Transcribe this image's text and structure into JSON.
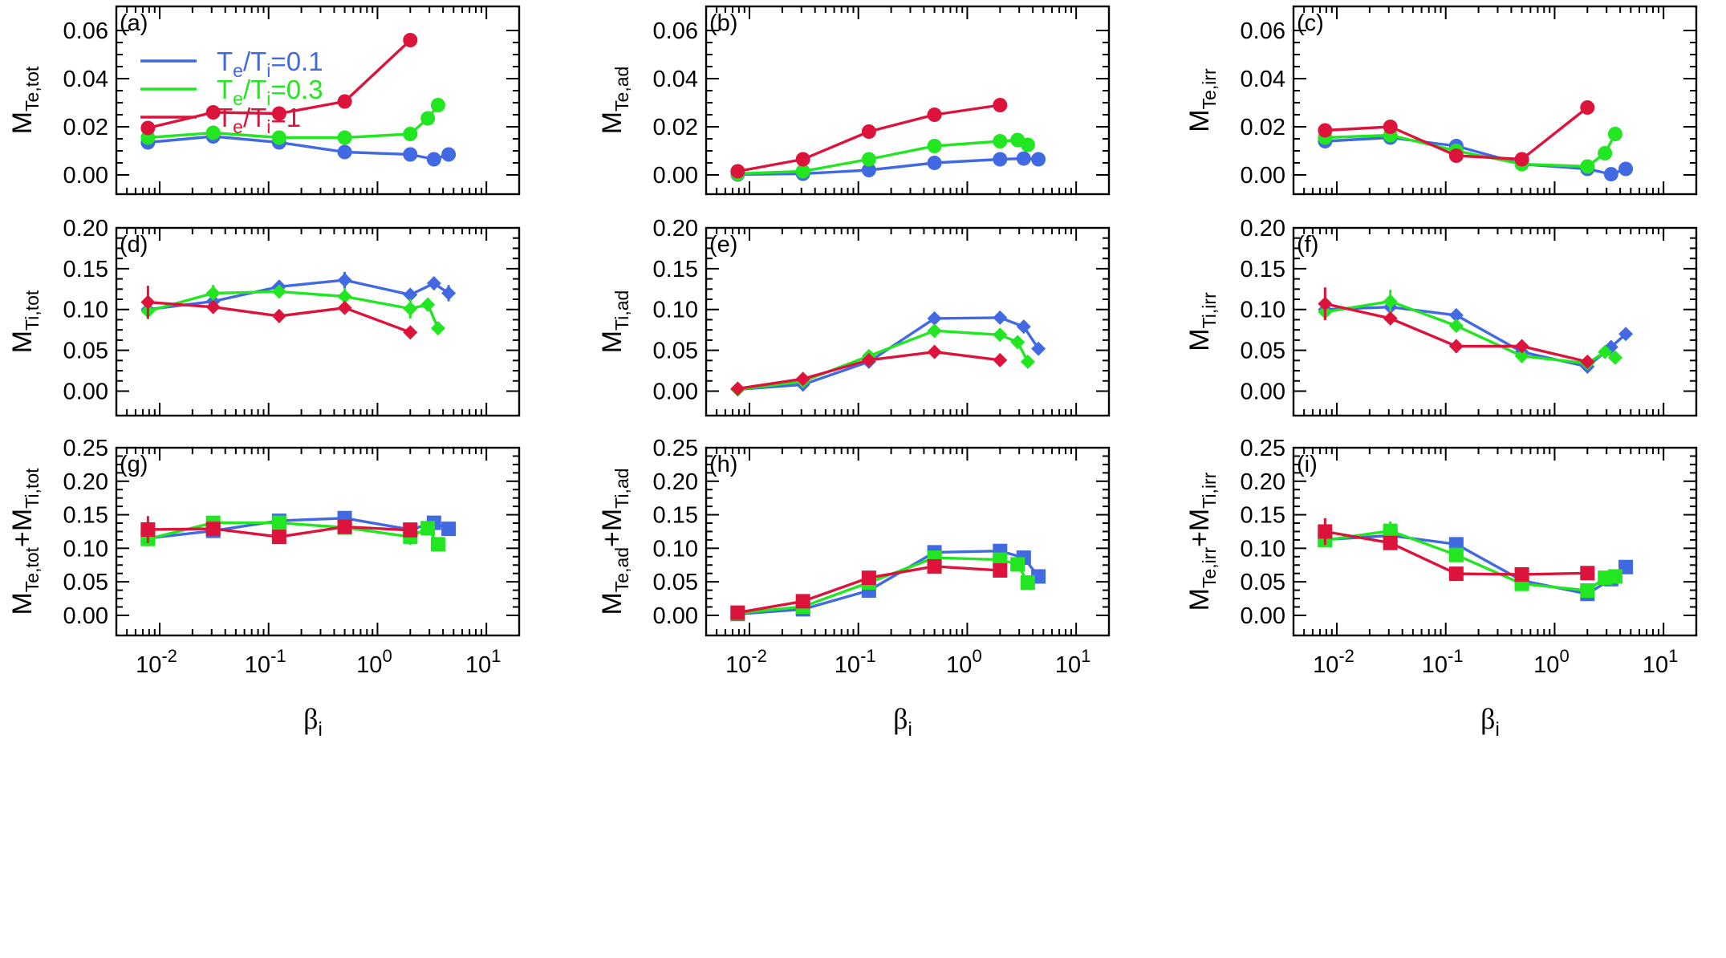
{
  "chart_data": {
    "type": "line",
    "xlabel": {
      "main": "β",
      "sub": "i"
    },
    "xscale": "log",
    "xlim": [
      0.004,
      20
    ],
    "xticks": [
      {
        "value": 0.01,
        "base": "10",
        "exp": "-2"
      },
      {
        "value": 0.1,
        "base": "10",
        "exp": "-1"
      },
      {
        "value": 1,
        "base": "10",
        "exp": "0"
      },
      {
        "value": 10,
        "base": "10",
        "exp": "1"
      }
    ],
    "legend": {
      "placement": "top-left of panel (a)",
      "entries": [
        {
          "series": "te01",
          "label": "T",
          "sub1": "e",
          "mid": "/T",
          "sub2": "i",
          "tail": "=0.1"
        },
        {
          "series": "te03",
          "label": "T",
          "sub1": "e",
          "mid": "/T",
          "sub2": "i",
          "tail": "=0.3"
        },
        {
          "series": "te1",
          "label": "T",
          "sub1": "e",
          "mid": "/T",
          "sub2": "i",
          "tail": "=1"
        }
      ]
    },
    "series_styles": {
      "te01": {
        "color": "#4169e1"
      },
      "te03": {
        "color": "#22e622"
      },
      "te1": {
        "color": "#dc143c"
      }
    },
    "rows": [
      {
        "ylim": [
          -0.008,
          0.07
        ],
        "yticks": [
          "0.00",
          "0.02",
          "0.04",
          "0.06"
        ],
        "marker": "circle"
      },
      {
        "ylim": [
          -0.03,
          0.2
        ],
        "yticks": [
          "0.00",
          "0.05",
          "0.10",
          "0.15",
          "0.20"
        ],
        "marker": "diamond"
      },
      {
        "ylim": [
          -0.03,
          0.25
        ],
        "yticks": [
          "0.00",
          "0.05",
          "0.10",
          "0.15",
          "0.20",
          "0.25"
        ],
        "marker": "square"
      }
    ],
    "panels": [
      {
        "label": "(a)",
        "row": 0,
        "ylabel": {
          "main": "M",
          "sub": "Te,tot"
        },
        "series": [
          {
            "key": "te01",
            "x": [
              0.0078,
              0.031,
              0.125,
              0.5,
              2,
              3.3,
              4.5
            ],
            "y": [
              0.0135,
              0.016,
              0.0135,
              0.0095,
              0.0085,
              0.0065,
              0.0085
            ],
            "err": [
              0.001,
              0.001,
              0.001,
              0.001,
              0.001,
              0.001,
              0.001
            ]
          },
          {
            "key": "te03",
            "x": [
              0.0078,
              0.031,
              0.125,
              0.5,
              2,
              2.9,
              3.6
            ],
            "y": [
              0.0155,
              0.0175,
              0.0155,
              0.0155,
              0.017,
              0.0235,
              0.029
            ],
            "err": [
              0.001,
              0.001,
              0.001,
              0.001,
              0.001,
              0.0015,
              0.0025
            ]
          },
          {
            "key": "te1",
            "x": [
              0.0078,
              0.031,
              0.125,
              0.5,
              2
            ],
            "y": [
              0.0195,
              0.026,
              0.0255,
              0.0305,
              0.056
            ],
            "err": [
              0.001,
              0.001,
              0.001,
              0.001,
              0.001
            ]
          }
        ]
      },
      {
        "label": "(b)",
        "row": 0,
        "ylabel": {
          "main": "M",
          "sub": "Te,ad"
        },
        "series": [
          {
            "key": "te01",
            "x": [
              0.0078,
              0.031,
              0.125,
              0.5,
              2,
              3.3,
              4.5
            ],
            "y": [
              0.0002,
              0.0005,
              0.002,
              0.005,
              0.0065,
              0.0068,
              0.0065
            ],
            "err": [
              0.0005,
              0.0005,
              0.0005,
              0.0005,
              0.0005,
              0.0005,
              0.0005
            ]
          },
          {
            "key": "te03",
            "x": [
              0.0078,
              0.031,
              0.125,
              0.5,
              2,
              2.9,
              3.6
            ],
            "y": [
              0.0005,
              0.0015,
              0.0065,
              0.012,
              0.014,
              0.0145,
              0.0125
            ],
            "err": [
              0.0005,
              0.0005,
              0.0005,
              0.0005,
              0.0005,
              0.0005,
              0.0005
            ]
          },
          {
            "key": "te1",
            "x": [
              0.0078,
              0.031,
              0.125,
              0.5,
              2
            ],
            "y": [
              0.0015,
              0.0065,
              0.018,
              0.025,
              0.029
            ],
            "err": [
              0.0005,
              0.0005,
              0.0005,
              0.0005,
              0.0005
            ]
          }
        ]
      },
      {
        "label": "(c)",
        "row": 0,
        "ylabel": {
          "main": "M",
          "sub": "Te,irr"
        },
        "series": [
          {
            "key": "te01",
            "x": [
              0.0078,
              0.031,
              0.125,
              0.5,
              2,
              3.3,
              4.5
            ],
            "y": [
              0.014,
              0.0155,
              0.012,
              0.0045,
              0.0025,
              0.0003,
              0.0025
            ],
            "err": [
              0.001,
              0.001,
              0.001,
              0.001,
              0.001,
              0.001,
              0.001
            ]
          },
          {
            "key": "te03",
            "x": [
              0.0078,
              0.031,
              0.125,
              0.5,
              2,
              2.9,
              3.6
            ],
            "y": [
              0.0155,
              0.0165,
              0.01,
              0.0045,
              0.0035,
              0.009,
              0.017
            ],
            "err": [
              0.0015,
              0.0015,
              0.001,
              0.001,
              0.001,
              0.001,
              0.0015
            ]
          },
          {
            "key": "te1",
            "x": [
              0.0078,
              0.031,
              0.125,
              0.5,
              2
            ],
            "y": [
              0.0185,
              0.02,
              0.008,
              0.0065,
              0.028
            ],
            "err": [
              0.0015,
              0.0015,
              0.001,
              0.001,
              0.001
            ]
          }
        ]
      },
      {
        "label": "(d)",
        "row": 1,
        "ylabel": {
          "main": "M",
          "sub": "Ti,tot"
        },
        "series": [
          {
            "key": "te01",
            "x": [
              0.0078,
              0.031,
              0.125,
              0.5,
              2,
              3.3,
              4.5
            ],
            "y": [
              0.1,
              0.11,
              0.128,
              0.136,
              0.118,
              0.132,
              0.12
            ],
            "err": [
              0.008,
              0.008,
              0.006,
              0.01,
              0.006,
              0.008,
              0.01
            ]
          },
          {
            "key": "te03",
            "x": [
              0.0078,
              0.031,
              0.125,
              0.5,
              2,
              2.9,
              3.6
            ],
            "y": [
              0.098,
              0.12,
              0.122,
              0.116,
              0.101,
              0.106,
              0.077
            ],
            "err": [
              0.01,
              0.01,
              0.008,
              0.01,
              0.012,
              0.008,
              0.008
            ]
          },
          {
            "key": "te1",
            "x": [
              0.0078,
              0.031,
              0.125,
              0.5,
              2
            ],
            "y": [
              0.109,
              0.103,
              0.092,
              0.102,
              0.072
            ],
            "err": [
              0.02,
              0.006,
              0.008,
              0.006,
              0.005
            ]
          }
        ]
      },
      {
        "label": "(e)",
        "row": 1,
        "ylabel": {
          "main": "M",
          "sub": "Ti,ad"
        },
        "series": [
          {
            "key": "te01",
            "x": [
              0.0078,
              0.031,
              0.125,
              0.5,
              2,
              3.3,
              4.5
            ],
            "y": [
              0.002,
              0.008,
              0.036,
              0.089,
              0.09,
              0.079,
              0.052
            ],
            "err": [
              0.002,
              0.002,
              0.003,
              0.003,
              0.003,
              0.003,
              0.003
            ]
          },
          {
            "key": "te03",
            "x": [
              0.0078,
              0.031,
              0.125,
              0.5,
              2,
              2.9,
              3.6
            ],
            "y": [
              0.002,
              0.012,
              0.043,
              0.074,
              0.069,
              0.06,
              0.036
            ],
            "err": [
              0.002,
              0.002,
              0.003,
              0.003,
              0.003,
              0.003,
              0.005
            ]
          },
          {
            "key": "te1",
            "x": [
              0.0078,
              0.031,
              0.125,
              0.5,
              2
            ],
            "y": [
              0.003,
              0.015,
              0.038,
              0.048,
              0.038
            ],
            "err": [
              0.002,
              0.002,
              0.003,
              0.003,
              0.003
            ]
          }
        ]
      },
      {
        "label": "(f)",
        "row": 1,
        "ylabel": {
          "main": "M",
          "sub": "Ti,irr"
        },
        "series": [
          {
            "key": "te01",
            "x": [
              0.0078,
              0.031,
              0.125,
              0.5,
              2,
              3.3,
              4.5
            ],
            "y": [
              0.1,
              0.103,
              0.093,
              0.048,
              0.03,
              0.054,
              0.07
            ],
            "err": [
              0.008,
              0.008,
              0.006,
              0.006,
              0.004,
              0.004,
              0.004
            ]
          },
          {
            "key": "te03",
            "x": [
              0.0078,
              0.031,
              0.125,
              0.5,
              2,
              2.9,
              3.6
            ],
            "y": [
              0.097,
              0.11,
              0.08,
              0.043,
              0.034,
              0.048,
              0.041
            ],
            "err": [
              0.01,
              0.014,
              0.006,
              0.008,
              0.006,
              0.004,
              0.004
            ]
          },
          {
            "key": "te1",
            "x": [
              0.0078,
              0.031,
              0.125,
              0.5,
              2
            ],
            "y": [
              0.107,
              0.089,
              0.055,
              0.055,
              0.036
            ],
            "err": [
              0.02,
              0.006,
              0.008,
              0.006,
              0.004
            ]
          }
        ]
      },
      {
        "label": "(g)",
        "row": 2,
        "ylabel": {
          "main": "M",
          "sub": "Te,tot",
          "plus": "+M",
          "sub2": "Ti,tot"
        },
        "series": [
          {
            "key": "te01",
            "x": [
              0.0078,
              0.031,
              0.125,
              0.5,
              2,
              3.3,
              4.5
            ],
            "y": [
              0.115,
              0.126,
              0.141,
              0.145,
              0.128,
              0.138,
              0.129
            ],
            "err": [
              0.008,
              0.008,
              0.006,
              0.01,
              0.006,
              0.008,
              0.01
            ]
          },
          {
            "key": "te03",
            "x": [
              0.0078,
              0.031,
              0.125,
              0.5,
              2,
              2.9,
              3.6
            ],
            "y": [
              0.114,
              0.138,
              0.138,
              0.131,
              0.117,
              0.13,
              0.106
            ],
            "err": [
              0.01,
              0.01,
              0.008,
              0.01,
              0.012,
              0.008,
              0.008
            ]
          },
          {
            "key": "te1",
            "x": [
              0.0078,
              0.031,
              0.125,
              0.5,
              2
            ],
            "y": [
              0.128,
              0.129,
              0.117,
              0.132,
              0.127
            ],
            "err": [
              0.02,
              0.006,
              0.008,
              0.006,
              0.005
            ]
          }
        ]
      },
      {
        "label": "(h)",
        "row": 2,
        "ylabel": {
          "main": "M",
          "sub": "Te,ad",
          "plus": "+M",
          "sub2": "Ti,ad"
        },
        "series": [
          {
            "key": "te01",
            "x": [
              0.0078,
              0.031,
              0.125,
              0.5,
              2,
              3.3,
              4.5
            ],
            "y": [
              0.002,
              0.009,
              0.037,
              0.094,
              0.096,
              0.086,
              0.058
            ],
            "err": [
              0.002,
              0.002,
              0.003,
              0.003,
              0.003,
              0.003,
              0.003
            ]
          },
          {
            "key": "te03",
            "x": [
              0.0078,
              0.031,
              0.125,
              0.5,
              2,
              2.9,
              3.6
            ],
            "y": [
              0.003,
              0.013,
              0.049,
              0.086,
              0.083,
              0.076,
              0.049
            ],
            "err": [
              0.002,
              0.002,
              0.003,
              0.003,
              0.003,
              0.003,
              0.005
            ]
          },
          {
            "key": "te1",
            "x": [
              0.0078,
              0.031,
              0.125,
              0.5,
              2
            ],
            "y": [
              0.004,
              0.021,
              0.056,
              0.073,
              0.067
            ],
            "err": [
              0.002,
              0.002,
              0.003,
              0.003,
              0.003
            ]
          }
        ]
      },
      {
        "label": "(i)",
        "row": 2,
        "ylabel": {
          "main": "M",
          "sub": "Te,irr",
          "plus": "+M",
          "sub2": "Ti,irr"
        },
        "series": [
          {
            "key": "te01",
            "x": [
              0.0078,
              0.031,
              0.125,
              0.5,
              2,
              3.3,
              4.5
            ],
            "y": [
              0.113,
              0.119,
              0.106,
              0.052,
              0.032,
              0.054,
              0.072
            ],
            "err": [
              0.008,
              0.008,
              0.006,
              0.006,
              0.004,
              0.004,
              0.004
            ]
          },
          {
            "key": "te03",
            "x": [
              0.0078,
              0.031,
              0.125,
              0.5,
              2,
              2.9,
              3.6
            ],
            "y": [
              0.112,
              0.126,
              0.09,
              0.047,
              0.037,
              0.056,
              0.058
            ],
            "err": [
              0.01,
              0.014,
              0.006,
              0.008,
              0.006,
              0.004,
              0.004
            ]
          },
          {
            "key": "te1",
            "x": [
              0.0078,
              0.031,
              0.125,
              0.5,
              2
            ],
            "y": [
              0.125,
              0.108,
              0.062,
              0.061,
              0.063
            ],
            "err": [
              0.02,
              0.006,
              0.008,
              0.006,
              0.004
            ]
          }
        ]
      }
    ]
  }
}
